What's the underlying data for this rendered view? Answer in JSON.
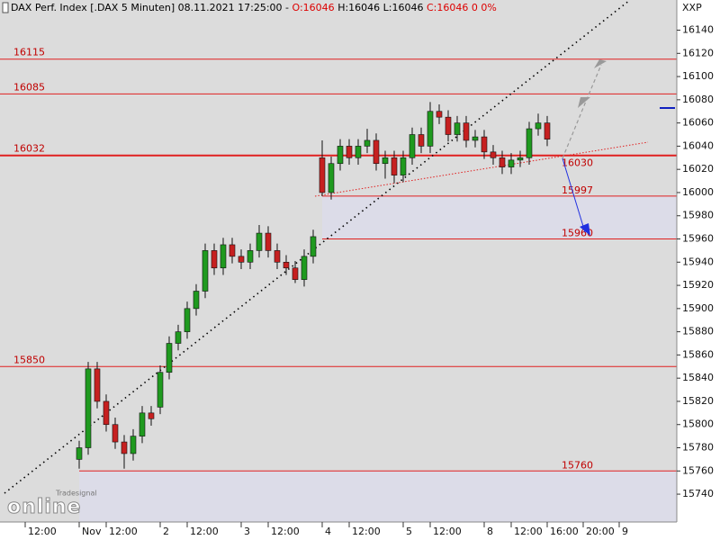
{
  "chart_data": {
    "type": "candlestick",
    "header": [
      "DAX Perf. Index [.DAX  5 Minuten] 08.11.2021 17:25:00 -",
      "O:16046",
      "H:16046 L:16046",
      "C:16046 0 0%"
    ],
    "corner_label": "XXP",
    "logo": [
      "Tradesignal",
      "online"
    ],
    "x": [
      0,
      1,
      2,
      3,
      4,
      5,
      6,
      7,
      8,
      9,
      10,
      11,
      12,
      13,
      14,
      15,
      16,
      17,
      18,
      19,
      20,
      21,
      22,
      23,
      24,
      25,
      26,
      27,
      28,
      29,
      30,
      31,
      32,
      33,
      34,
      35,
      36,
      37,
      38,
      39,
      40,
      41,
      42,
      43,
      44,
      45,
      46,
      47,
      48,
      49,
      50,
      51,
      52
    ],
    "open": [
      15770,
      15780,
      15848,
      15820,
      15800,
      15785,
      15775,
      15790,
      15810,
      15815,
      15845,
      15870,
      15880,
      15900,
      15915,
      15950,
      15935,
      15955,
      15945,
      15940,
      15950,
      15965,
      15950,
      15940,
      15935,
      15925,
      15945,
      16030,
      16000,
      16025,
      16040,
      16030,
      16040,
      16045,
      16025,
      16030,
      16015,
      16030,
      16050,
      16040,
      16070,
      16065,
      16050,
      16060,
      16045,
      16048,
      16035,
      16030,
      16022,
      16028,
      16030,
      16055,
      16060
    ],
    "high": [
      15786,
      15854,
      15854,
      15826,
      15806,
      15791,
      15796,
      15816,
      15816,
      15851,
      15876,
      15886,
      15906,
      15921,
      15956,
      15956,
      15961,
      15961,
      15951,
      15956,
      15972,
      15971,
      15956,
      15946,
      15941,
      15951,
      15968,
      16045,
      16031,
      16046,
      16046,
      16046,
      16055,
      16051,
      16036,
      16036,
      16036,
      16056,
      16056,
      16078,
      16076,
      16071,
      16066,
      16066,
      16054,
      16054,
      16041,
      16036,
      16034,
      16036,
      16061,
      16068,
      16066
    ],
    "low": [
      15762,
      15774,
      15814,
      15794,
      15779,
      15762,
      15769,
      15784,
      15799,
      15809,
      15839,
      15864,
      15874,
      15894,
      15909,
      15929,
      15929,
      15939,
      15934,
      15934,
      15944,
      15944,
      15934,
      15929,
      15922,
      15919,
      15939,
      15997,
      15994,
      16019,
      16024,
      16024,
      16034,
      16019,
      16012,
      16008,
      16009,
      16024,
      16034,
      16034,
      16059,
      16044,
      16044,
      16039,
      16039,
      16029,
      16024,
      16016,
      16016,
      16022,
      16024,
      16049,
      16040
    ],
    "close": [
      15780,
      15848,
      15820,
      15800,
      15785,
      15775,
      15790,
      15810,
      15805,
      15845,
      15870,
      15880,
      15900,
      15915,
      15950,
      15935,
      15955,
      15945,
      15940,
      15950,
      15965,
      15950,
      15940,
      15935,
      15925,
      15945,
      15962,
      16000,
      16025,
      16040,
      16030,
      16040,
      16045,
      16025,
      16030,
      16015,
      16030,
      16050,
      16040,
      16070,
      16065,
      16050,
      16060,
      16045,
      16048,
      16035,
      16030,
      16022,
      16028,
      16030,
      16055,
      16060,
      16046
    ],
    "up_color": "#1f9a1f",
    "down_color": "#c62020",
    "line_color": "#e02020",
    "levels": [
      16115,
      16085,
      16032,
      15850
    ],
    "support_levels": [
      15997,
      15960,
      15760
    ],
    "marker_labels": [
      16030
    ],
    "xlim": [
      -8.8,
      66.4
    ],
    "xticks": [
      {
        "value": -6,
        "label": "12:00"
      },
      {
        "value": 0,
        "label": "Nov"
      },
      {
        "value": 3,
        "label": "12:00"
      },
      {
        "value": 9,
        "label": "2"
      },
      {
        "value": 12,
        "label": "12:00"
      },
      {
        "value": 18,
        "label": "3"
      },
      {
        "value": 21,
        "label": "12:00"
      },
      {
        "value": 27,
        "label": "4"
      },
      {
        "value": 30,
        "label": "12:00"
      },
      {
        "value": 36,
        "label": "5"
      },
      {
        "value": 39,
        "label": "12:00"
      },
      {
        "value": 45,
        "label": "8"
      },
      {
        "value": 48,
        "label": "12:00"
      },
      {
        "value": 52,
        "label": "16:00"
      },
      {
        "value": 56,
        "label": "20:00"
      },
      {
        "value": 60,
        "label": "9"
      }
    ],
    "ylim": [
      15716,
      16166
    ],
    "yticks": [
      15740,
      15760,
      15780,
      15800,
      15820,
      15840,
      15860,
      15880,
      15900,
      15920,
      15940,
      15960,
      15980,
      16000,
      16020,
      16040,
      16060,
      16080,
      16100,
      16120,
      16140
    ]
  }
}
